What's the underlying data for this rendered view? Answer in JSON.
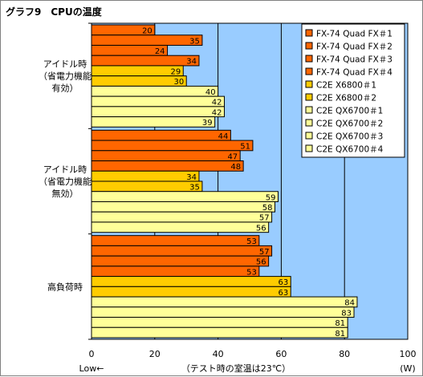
{
  "chart_data": {
    "type": "bar",
    "orientation": "horizontal",
    "title": "グラフ9　CPUの温度",
    "xlim": [
      0,
      100
    ],
    "x_ticks": [
      0,
      20,
      40,
      60,
      80,
      100
    ],
    "x_unit": "(W)",
    "x_note_left": "Low←",
    "x_note_center": "（テスト時の室温は23℃）",
    "grid": true,
    "legend_position": "top-right",
    "colors": {
      "plot_bg": "#99CCFF",
      "fx74": "#FF6600",
      "x6800": "#FFCC00",
      "qx6700": "#FFFF99",
      "border": "#000000",
      "grid": "#000000"
    },
    "series": [
      {
        "name": "FX-74 Quad FX＃1",
        "color_key": "fx74"
      },
      {
        "name": "FX-74 Quad FX＃2",
        "color_key": "fx74"
      },
      {
        "name": "FX-74 Quad FX＃3",
        "color_key": "fx74"
      },
      {
        "name": "FX-74 Quad FX＃4",
        "color_key": "fx74"
      },
      {
        "name": "C2E X6800＃1",
        "color_key": "x6800"
      },
      {
        "name": "C2E X6800＃2",
        "color_key": "x6800"
      },
      {
        "name": "C2E QX6700＃1",
        "color_key": "qx6700"
      },
      {
        "name": "C2E QX6700＃2",
        "color_key": "qx6700"
      },
      {
        "name": "C2E QX6700＃3",
        "color_key": "qx6700"
      },
      {
        "name": "C2E QX6700＃4",
        "color_key": "qx6700"
      }
    ],
    "groups": [
      {
        "label_lines": [
          "アイドル時",
          "（省電力機能",
          "有効）"
        ],
        "values": [
          20,
          35,
          24,
          34,
          29,
          30,
          40,
          42,
          42,
          39
        ]
      },
      {
        "label_lines": [
          "アイドル時",
          "（省電力機能",
          "無効）"
        ],
        "values": [
          44,
          51,
          47,
          48,
          34,
          35,
          59,
          58,
          57,
          56
        ]
      },
      {
        "label_lines": [
          "高負荷時"
        ],
        "values": [
          53,
          57,
          56,
          53,
          63,
          63,
          84,
          83,
          81,
          81
        ]
      }
    ]
  }
}
